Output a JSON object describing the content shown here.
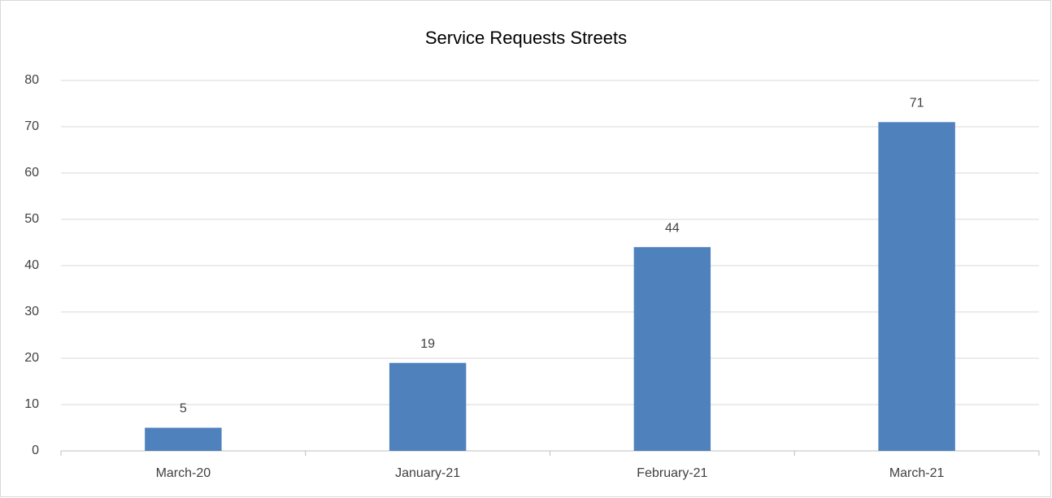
{
  "chart_data": {
    "type": "bar",
    "title": "Service Requests Streets",
    "categories": [
      "March-20",
      "January-21",
      "February-21",
      "March-21"
    ],
    "values": [
      5,
      19,
      44,
      71
    ],
    "color": "#4f81bd",
    "ylim": [
      0,
      80
    ],
    "yticks": [
      0,
      10,
      20,
      30,
      40,
      50,
      60,
      70,
      80
    ],
    "grid": true
  }
}
